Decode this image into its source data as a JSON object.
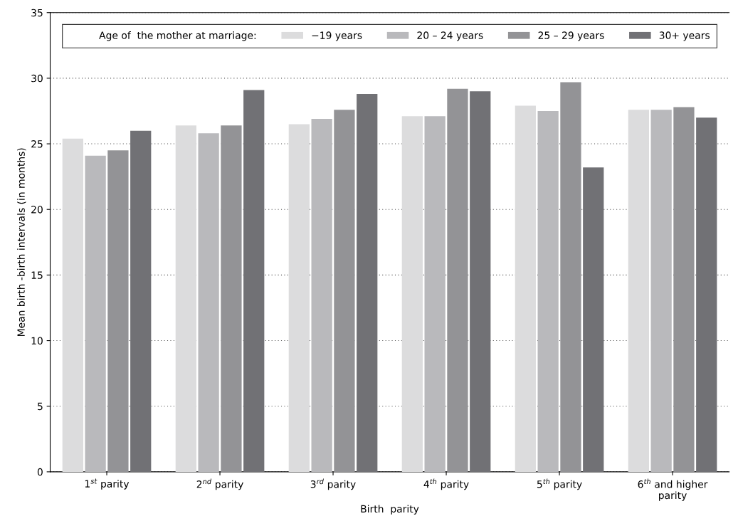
{
  "chart_data": {
    "type": "bar",
    "categories": [
      "1$^{st}$ parity",
      "2$^{nd}$ parity",
      "3$^{rd}$ parity",
      "4$^{th}$ parity",
      "5$^{th}$ parity",
      "6$^{th}$ and higher\nparity"
    ],
    "series": [
      {
        "name": "−19 years",
        "color": "#dcdcdd",
        "values": [
          25.4,
          26.4,
          26.5,
          27.1,
          27.9,
          27.6
        ]
      },
      {
        "name": "20 – 24 years",
        "color": "#b9b9bc",
        "values": [
          24.1,
          25.8,
          26.9,
          27.1,
          27.5,
          27.6
        ]
      },
      {
        "name": "25 – 29 years",
        "color": "#939396",
        "values": [
          24.5,
          26.4,
          27.6,
          29.2,
          29.7,
          27.8
        ]
      },
      {
        "name": "30+ years",
        "color": "#717175",
        "values": [
          26.0,
          29.1,
          28.8,
          29.0,
          23.2,
          27.0
        ]
      }
    ],
    "xlabel": "Birth  parity",
    "ylabel": "Mean birth -birth intervals (in months)",
    "legend_title": "Age of  the mother at marriage:",
    "ylim": [
      0,
      35
    ],
    "yticks": [
      0,
      5,
      10,
      15,
      20,
      25,
      30,
      35
    ],
    "grid": "y",
    "legend": "top"
  }
}
